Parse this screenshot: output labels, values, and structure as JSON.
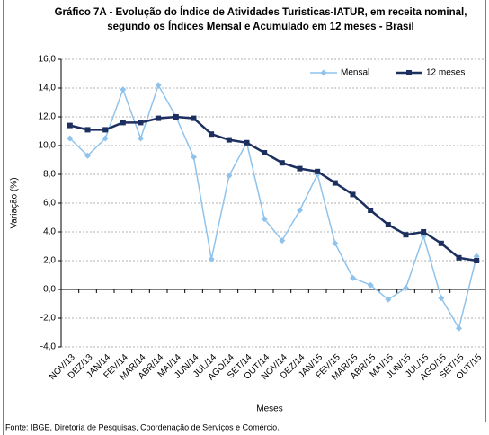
{
  "chart_data": {
    "type": "line",
    "title": [
      "Gráfico 7A - Evolução do Índice de Atividades Turisticas-IATUR, em receita nominal,",
      "segundo os Índices Mensal e Acumulado em 12 meses - Brasil"
    ],
    "ylabel": "Variação (%)",
    "xlabel": "Meses",
    "source": "Fonte: IBGE, Diretoria de Pesquisas, Coordenação de Serviços e Comércio.",
    "categories": [
      "NOV/13",
      "DEZ/13",
      "JAN/14",
      "FEV/14",
      "MAR/14",
      "ABR/14",
      "MAI/14",
      "JUN/14",
      "JUL/14",
      "AGO/14",
      "SET/14",
      "OUT/14",
      "NOV/14",
      "DEZ/14",
      "JAN/15",
      "FEV/15",
      "MAR/15",
      "ABR/15",
      "MAI/15",
      "JUN/15",
      "JUL/15",
      "AGO/15",
      "SET/15",
      "OUT/15"
    ],
    "series": [
      {
        "name": "Mensal",
        "color": "#8fc3ec",
        "marker": "diamond",
        "values": [
          10.5,
          9.3,
          10.5,
          13.9,
          10.5,
          14.2,
          12.0,
          9.2,
          2.1,
          7.9,
          10.2,
          4.9,
          3.4,
          5.5,
          8.0,
          3.2,
          0.8,
          0.3,
          -0.7,
          0.1,
          3.7,
          -0.6,
          -2.7,
          2.3
        ]
      },
      {
        "name": "12 meses",
        "color": "#1c2f5e",
        "marker": "square",
        "values": [
          11.4,
          11.1,
          11.1,
          11.6,
          11.6,
          11.9,
          12.0,
          11.9,
          10.8,
          10.4,
          10.2,
          9.5,
          8.8,
          8.4,
          8.2,
          7.4,
          6.6,
          5.5,
          4.5,
          3.8,
          4.0,
          3.2,
          2.2,
          2.0
        ]
      }
    ],
    "ylim": [
      -4,
      16
    ],
    "yticks": [
      {
        "value": -4,
        "label": "-4,0"
      },
      {
        "value": -2,
        "label": "-2,0"
      },
      {
        "value": 0,
        "label": "0,0"
      },
      {
        "value": 2,
        "label": "2,0"
      },
      {
        "value": 4,
        "label": "4,0"
      },
      {
        "value": 6,
        "label": "6,0"
      },
      {
        "value": 8,
        "label": "8,0"
      },
      {
        "value": 10,
        "label": "10,0"
      },
      {
        "value": 12,
        "label": "12,0"
      },
      {
        "value": 14,
        "label": "14,0"
      },
      {
        "value": 16,
        "label": "16,0"
      }
    ],
    "grid": true,
    "legend": "upper right"
  }
}
